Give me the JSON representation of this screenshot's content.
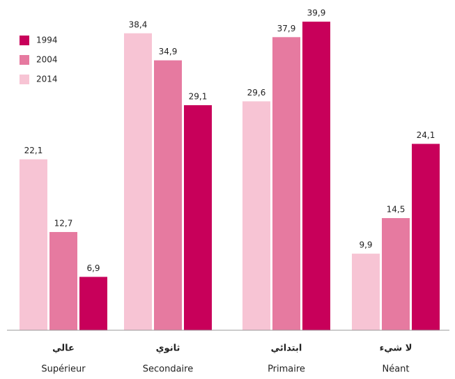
{
  "chart_data": {
    "type": "bar",
    "categories": [
      "Supérieur",
      "Secondaire",
      "Primaire",
      "Néant"
    ],
    "categories_ar": [
      "عالي",
      "ثانوي",
      "ابتدائي",
      "لا شيء"
    ],
    "series": [
      {
        "name": "1994",
        "color": "#c8005a",
        "values": [
          6.9,
          29.1,
          39.9,
          24.1
        ],
        "value_labels": [
          "6,9",
          "29,1",
          "39,9",
          "24,1"
        ]
      },
      {
        "name": "2004",
        "color": "#e67aa0",
        "values": [
          12.7,
          34.9,
          37.9,
          14.5
        ],
        "value_labels": [
          "12,7",
          "34,9",
          "37,9",
          "14,5"
        ]
      },
      {
        "name": "2014",
        "color": "#f7c4d4",
        "values": [
          22.1,
          38.4,
          29.6,
          9.9
        ],
        "value_labels": [
          "22,1",
          "38,4",
          "29,6",
          "9,9"
        ]
      }
    ],
    "ylim": [
      0,
      40
    ],
    "legend": "upper left"
  }
}
